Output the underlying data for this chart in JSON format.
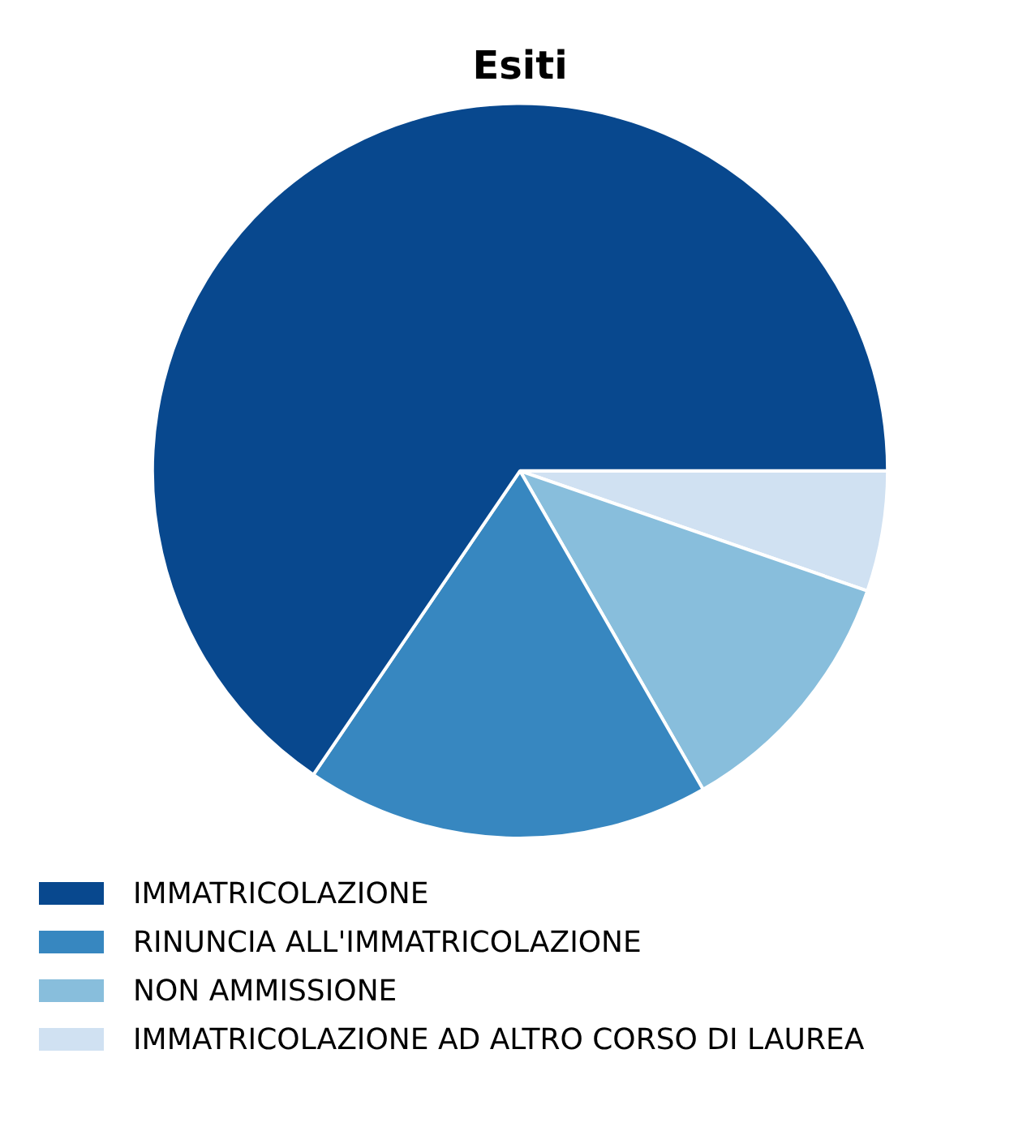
{
  "chart_data": {
    "type": "pie",
    "title": "Esiti",
    "categories": [
      "IMMATRICOLAZIONE",
      "RINUNCIA ALL'IMMATRICOLAZIONE",
      "NON AMMISSIONE",
      "IMMATRICOLAZIONE AD ALTRO CORSO DI LAUREA"
    ],
    "values": [
      65.5,
      17.8,
      11.4,
      5.3
    ],
    "colors": [
      "#08488e",
      "#3787c0",
      "#88bedc",
      "#d0e1f2"
    ],
    "legend": "bottom"
  }
}
